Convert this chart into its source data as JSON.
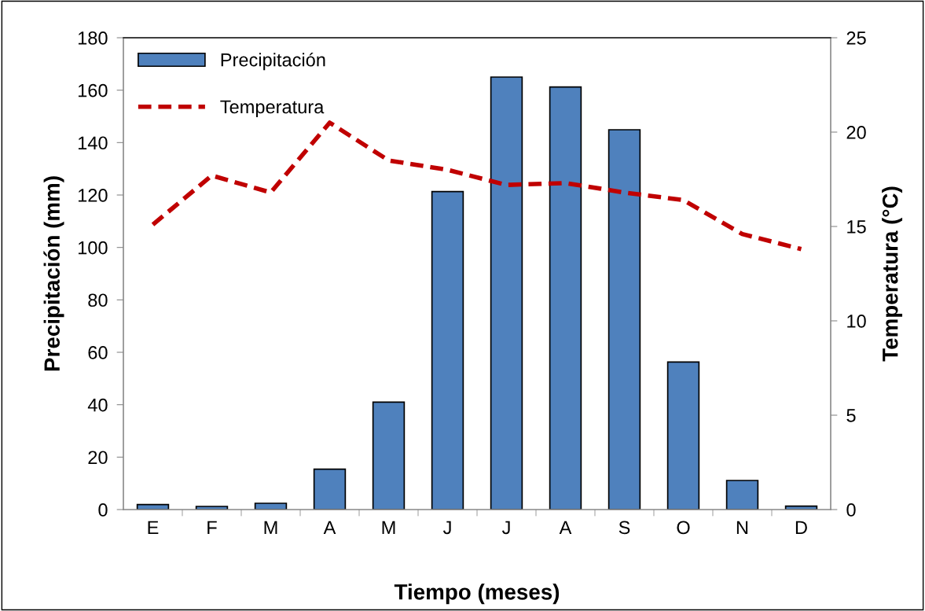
{
  "chart_data": {
    "type": "bar",
    "xlabel": "Tiempo (meses)",
    "ylabel": "Precipitación (mm)",
    "y2label": "Temperatura (°C)",
    "categories": [
      "E",
      "F",
      "M",
      "A",
      "M",
      "J",
      "J",
      "A",
      "S",
      "O",
      "N",
      "D"
    ],
    "series": [
      {
        "name": "Precipitación",
        "color": "#4f81bd",
        "values": [
          1.9,
          1.2,
          2.4,
          15.4,
          41,
          121.3,
          165,
          161.2,
          144.9,
          56.3,
          11.1,
          1.3
        ]
      },
      {
        "name": "Temperatura",
        "type": "line",
        "axis": "y2",
        "color": "#c00000",
        "line_style": "dashed",
        "values": [
          15.1,
          17.7,
          16.8,
          20.5,
          18.5,
          18.0,
          17.2,
          17.3,
          16.8,
          16.4,
          14.6,
          13.8
        ]
      }
    ],
    "ylim": [
      0,
      180
    ],
    "yticks": [
      0,
      20,
      40,
      60,
      80,
      100,
      120,
      140,
      160,
      180
    ],
    "y2lim": [
      0,
      25
    ],
    "y2ticks": [
      0,
      5,
      10,
      15,
      20,
      25
    ],
    "legend": "top left",
    "grid": false
  }
}
